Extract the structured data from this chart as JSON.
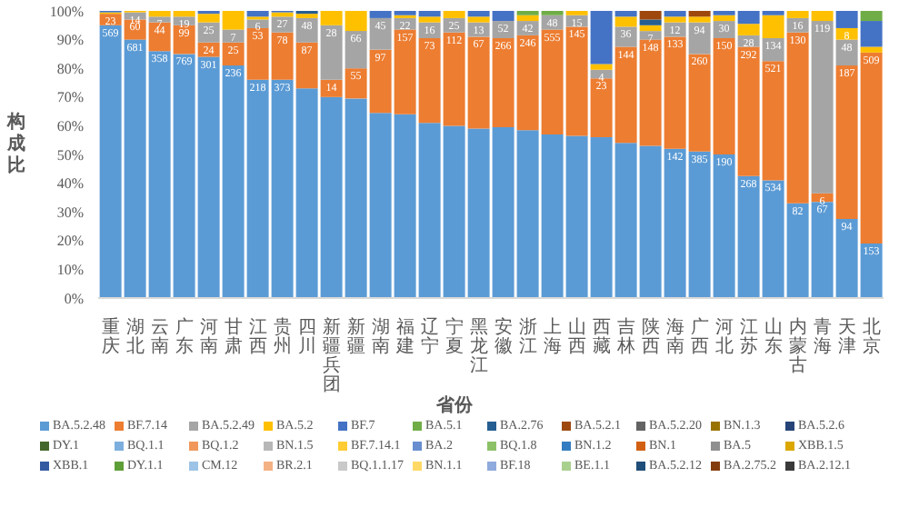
{
  "chart_data": {
    "type": "bar",
    "stacked": true,
    "xlabel": "省份",
    "ylabel": "构成比",
    "legend": "bottom",
    "categories": [
      "重庆",
      "湖北",
      "云南",
      "广东",
      "河南",
      "甘肃",
      "江西",
      "贵州",
      "四川",
      "新疆兵团",
      "新疆",
      "湖南",
      "福建",
      "辽宁",
      "宁夏",
      "黑龙江",
      "安徽",
      "浙江",
      "上海",
      "山西",
      "西藏",
      "吉林",
      "陕西",
      "海南",
      "广西",
      "河北",
      "江苏",
      "山东",
      "内蒙古",
      "青海",
      "天津",
      "北京"
    ],
    "ylim": [
      0,
      100
    ],
    "yticks": [
      {
        "value": 0,
        "label": "0%"
      },
      {
        "value": 10,
        "label": "10%"
      },
      {
        "value": 20,
        "label": "20%"
      },
      {
        "value": 30,
        "label": "30%"
      },
      {
        "value": 40,
        "label": "40%"
      },
      {
        "value": 50,
        "label": "50%"
      },
      {
        "value": 60,
        "label": "60%"
      },
      {
        "value": 70,
        "label": "70%"
      },
      {
        "value": 80,
        "label": "80%"
      },
      {
        "value": 90,
        "label": "90%"
      },
      {
        "value": 100,
        "label": "100%"
      }
    ],
    "series": [
      {
        "name": "BA.5.2.48",
        "color": "#5b9bd5",
        "values": [
          95,
          90,
          86,
          85,
          84,
          81,
          76,
          76,
          73,
          70,
          69.5,
          64.5,
          64,
          61,
          60,
          59,
          59.5,
          58.5,
          57,
          56.5,
          56,
          54,
          53,
          52,
          51,
          50,
          42.5,
          41,
          33,
          33.5,
          27.5,
          19
        ]
      },
      {
        "name": "BF.7.14",
        "color": "#ed7d31",
        "values": [
          4,
          7,
          10,
          10,
          5,
          8,
          18,
          16.5,
          16,
          6,
          10.5,
          22,
          29.5,
          29.5,
          32.5,
          32,
          31,
          33,
          36.5,
          38,
          20.5,
          33.5,
          37,
          39,
          34,
          40.5,
          45,
          41.5,
          59.5,
          3,
          53.5,
          66.5
        ]
      },
      {
        "name": "BA.5.2.49",
        "color": "#a5a5a5",
        "values": [
          null,
          2.5,
          2,
          3,
          7,
          4.5,
          3,
          5.5,
          8.5,
          19,
          13,
          11,
          4,
          5.5,
          5,
          5,
          6,
          5,
          5,
          4,
          3,
          7,
          3,
          5,
          11,
          6,
          4,
          8,
          5,
          60,
          9,
          null
        ]
      },
      {
        "name": "BA.5.2",
        "color": "#ffc000",
        "values": [
          0.5,
          0.5,
          2,
          2,
          3,
          6.5,
          1,
          1.5,
          1.5,
          5,
          7,
          null,
          1,
          2,
          2.5,
          2,
          null,
          2,
          null,
          1.5,
          2,
          3.5,
          2,
          2,
          2,
          2,
          4,
          8,
          2.5,
          3.5,
          4,
          2
        ]
      },
      {
        "name": "BF.7",
        "color": "#4472c4",
        "values": [
          0.5,
          null,
          null,
          null,
          1,
          null,
          2,
          0.5,
          null,
          null,
          null,
          2.5,
          1.5,
          2,
          null,
          2,
          3.5,
          null,
          null,
          null,
          18.5,
          2,
          null,
          2,
          null,
          1.5,
          4.5,
          1.5,
          null,
          null,
          6,
          9
        ]
      },
      {
        "name": "BA.5.1",
        "color": "#70ad47",
        "values": [
          null,
          null,
          null,
          null,
          null,
          null,
          null,
          null,
          null,
          null,
          null,
          null,
          null,
          null,
          null,
          null,
          null,
          1.5,
          1.5,
          null,
          null,
          null,
          null,
          null,
          null,
          null,
          null,
          null,
          null,
          null,
          null,
          3.5
        ]
      },
      {
        "name": "BA.2.76",
        "color": "#255e91",
        "values": [
          null,
          null,
          null,
          null,
          null,
          null,
          null,
          null,
          1,
          null,
          null,
          null,
          null,
          null,
          null,
          null,
          null,
          null,
          null,
          null,
          null,
          null,
          2,
          null,
          null,
          null,
          null,
          null,
          null,
          null,
          null,
          null
        ]
      },
      {
        "name": "BA.5.2.1",
        "color": "#9e480e",
        "values": [
          null,
          null,
          null,
          null,
          null,
          null,
          null,
          null,
          null,
          null,
          null,
          null,
          null,
          null,
          null,
          null,
          null,
          null,
          null,
          null,
          null,
          null,
          3,
          null,
          2,
          null,
          null,
          null,
          null,
          null,
          null,
          null
        ]
      },
      {
        "name": "BA.5.2.20",
        "color": "#636363",
        "values": [
          null,
          null,
          null,
          null,
          null,
          null,
          null,
          null,
          null,
          null,
          null,
          null,
          null,
          null,
          null,
          null,
          null,
          null,
          null,
          null,
          null,
          null,
          null,
          null,
          null,
          null,
          null,
          null,
          null,
          null,
          null,
          null
        ]
      },
      {
        "name": "BN.1.3",
        "color": "#997300",
        "values": [
          null,
          null,
          null,
          null,
          null,
          null,
          null,
          null,
          null,
          null,
          null,
          null,
          null,
          null,
          null,
          null,
          null,
          null,
          null,
          null,
          null,
          null,
          null,
          null,
          null,
          null,
          null,
          null,
          null,
          null,
          null,
          null
        ]
      },
      {
        "name": "BA.5.2.6",
        "color": "#264478",
        "values": [
          null,
          null,
          null,
          null,
          null,
          null,
          null,
          null,
          null,
          null,
          null,
          null,
          null,
          null,
          null,
          null,
          null,
          null,
          null,
          null,
          null,
          null,
          null,
          null,
          null,
          null,
          null,
          null,
          null,
          null,
          null,
          null
        ]
      },
      {
        "name": "DY.1",
        "color": "#43682b",
        "values": [
          null,
          null,
          null,
          null,
          null,
          null,
          null,
          null,
          null,
          null,
          null,
          null,
          null,
          null,
          null,
          null,
          null,
          null,
          null,
          null,
          null,
          null,
          null,
          null,
          null,
          null,
          null,
          null,
          null,
          null,
          null,
          null
        ]
      },
      {
        "name": "BQ.1.1",
        "color": "#7cafdd",
        "values": [
          null,
          null,
          null,
          null,
          null,
          null,
          null,
          null,
          null,
          null,
          null,
          null,
          null,
          null,
          null,
          null,
          null,
          null,
          null,
          null,
          null,
          null,
          null,
          null,
          null,
          null,
          null,
          null,
          null,
          null,
          null,
          null
        ]
      },
      {
        "name": "BQ.1.2",
        "color": "#f1975a",
        "values": [
          null,
          null,
          null,
          null,
          null,
          null,
          null,
          null,
          null,
          null,
          null,
          null,
          null,
          null,
          null,
          null,
          null,
          null,
          null,
          null,
          null,
          null,
          null,
          null,
          null,
          null,
          null,
          null,
          null,
          null,
          null,
          null
        ]
      },
      {
        "name": "BN.1.5",
        "color": "#b7b7b7",
        "values": [
          null,
          null,
          null,
          null,
          null,
          null,
          null,
          null,
          null,
          null,
          null,
          null,
          null,
          null,
          null,
          null,
          null,
          null,
          null,
          null,
          null,
          null,
          null,
          null,
          null,
          null,
          null,
          null,
          null,
          null,
          null,
          null
        ]
      },
      {
        "name": "BF.7.14.1",
        "color": "#ffcd33",
        "values": [
          null,
          null,
          null,
          null,
          null,
          null,
          null,
          null,
          null,
          null,
          null,
          null,
          null,
          null,
          null,
          null,
          null,
          null,
          null,
          null,
          null,
          null,
          null,
          null,
          null,
          null,
          null,
          null,
          null,
          null,
          null,
          null
        ]
      },
      {
        "name": "BA.2",
        "color": "#698ed0",
        "values": [
          null,
          null,
          null,
          null,
          null,
          null,
          null,
          null,
          null,
          null,
          null,
          null,
          null,
          null,
          null,
          null,
          null,
          null,
          null,
          null,
          null,
          null,
          null,
          null,
          null,
          null,
          null,
          null,
          null,
          null,
          null,
          null
        ]
      },
      {
        "name": "BQ.1.8",
        "color": "#8cc168",
        "values": [
          null,
          null,
          null,
          null,
          null,
          null,
          null,
          null,
          null,
          null,
          null,
          null,
          null,
          null,
          null,
          null,
          null,
          null,
          null,
          null,
          null,
          null,
          null,
          null,
          null,
          null,
          null,
          null,
          null,
          null,
          null,
          null
        ]
      },
      {
        "name": "BN.1.2",
        "color": "#327dc2",
        "values": [
          null,
          null,
          null,
          null,
          null,
          null,
          null,
          null,
          null,
          null,
          null,
          null,
          null,
          null,
          null,
          null,
          null,
          null,
          null,
          null,
          null,
          null,
          null,
          null,
          null,
          null,
          null,
          null,
          null,
          null,
          null,
          null
        ]
      },
      {
        "name": "BN.1",
        "color": "#d26012",
        "values": [
          null,
          null,
          null,
          null,
          null,
          null,
          null,
          null,
          null,
          null,
          null,
          null,
          null,
          null,
          null,
          null,
          null,
          null,
          null,
          null,
          null,
          null,
          null,
          null,
          null,
          null,
          null,
          null,
          null,
          null,
          null,
          null
        ]
      },
      {
        "name": "BA.5",
        "color": "#8f8f8f",
        "values": [
          null,
          null,
          null,
          null,
          null,
          null,
          null,
          null,
          null,
          null,
          null,
          null,
          null,
          null,
          null,
          null,
          null,
          null,
          null,
          null,
          null,
          null,
          null,
          null,
          null,
          null,
          null,
          null,
          null,
          null,
          null,
          null
        ]
      },
      {
        "name": "XBB.1.5",
        "color": "#dba700",
        "values": [
          null,
          null,
          null,
          null,
          null,
          null,
          null,
          null,
          null,
          null,
          null,
          null,
          null,
          null,
          null,
          null,
          null,
          null,
          null,
          null,
          null,
          null,
          null,
          null,
          null,
          null,
          null,
          null,
          null,
          null,
          null,
          null
        ]
      },
      {
        "name": "XBB.1",
        "color": "#335aa1",
        "values": [
          null,
          null,
          null,
          null,
          null,
          null,
          null,
          null,
          null,
          null,
          null,
          null,
          null,
          null,
          null,
          null,
          null,
          null,
          null,
          null,
          null,
          null,
          null,
          null,
          null,
          null,
          null,
          null,
          null,
          null,
          null,
          null
        ]
      },
      {
        "name": "DY.1.1",
        "color": "#5e9e37",
        "values": [
          null,
          null,
          null,
          null,
          null,
          null,
          null,
          null,
          null,
          null,
          null,
          null,
          null,
          null,
          null,
          null,
          null,
          null,
          null,
          null,
          null,
          null,
          null,
          null,
          null,
          null,
          null,
          null,
          null,
          null,
          null,
          null
        ]
      },
      {
        "name": "CM.12",
        "color": "#9dc3e6",
        "values": [
          null,
          null,
          null,
          null,
          null,
          null,
          null,
          null,
          null,
          null,
          null,
          null,
          null,
          null,
          null,
          null,
          null,
          null,
          null,
          null,
          null,
          null,
          null,
          null,
          null,
          null,
          null,
          null,
          null,
          null,
          null,
          null
        ]
      },
      {
        "name": "BR.2.1",
        "color": "#f4b183",
        "values": [
          null,
          null,
          null,
          null,
          null,
          null,
          null,
          null,
          null,
          null,
          null,
          null,
          null,
          null,
          null,
          null,
          null,
          null,
          null,
          null,
          null,
          null,
          null,
          null,
          null,
          null,
          null,
          null,
          null,
          null,
          null,
          null
        ]
      },
      {
        "name": "BQ.1.1.17",
        "color": "#c9c9c9",
        "values": [
          null,
          null,
          null,
          null,
          null,
          null,
          null,
          null,
          null,
          null,
          null,
          null,
          null,
          null,
          null,
          null,
          null,
          null,
          null,
          null,
          null,
          null,
          null,
          null,
          null,
          null,
          null,
          null,
          null,
          null,
          null,
          null
        ]
      },
      {
        "name": "BN.1.1",
        "color": "#ffd966",
        "values": [
          null,
          null,
          null,
          null,
          null,
          null,
          null,
          null,
          null,
          null,
          null,
          null,
          null,
          null,
          null,
          null,
          null,
          null,
          null,
          null,
          null,
          null,
          null,
          null,
          null,
          null,
          null,
          null,
          null,
          null,
          null,
          null
        ]
      },
      {
        "name": "BF.18",
        "color": "#8faadc",
        "values": [
          null,
          null,
          null,
          null,
          null,
          null,
          null,
          null,
          null,
          null,
          null,
          null,
          null,
          null,
          null,
          null,
          null,
          null,
          null,
          null,
          null,
          null,
          null,
          null,
          null,
          null,
          null,
          null,
          null,
          null,
          null,
          null
        ]
      },
      {
        "name": "BE.1.1",
        "color": "#a9d18e",
        "values": [
          null,
          null,
          null,
          null,
          null,
          null,
          null,
          null,
          null,
          null,
          null,
          null,
          null,
          null,
          null,
          null,
          null,
          null,
          null,
          null,
          null,
          null,
          null,
          null,
          null,
          null,
          null,
          null,
          null,
          null,
          null,
          null
        ]
      },
      {
        "name": "BA.5.2.12",
        "color": "#1f4e79",
        "values": [
          null,
          null,
          null,
          null,
          null,
          null,
          null,
          null,
          null,
          null,
          null,
          null,
          null,
          null,
          null,
          null,
          null,
          null,
          null,
          null,
          null,
          null,
          null,
          null,
          null,
          null,
          null,
          null,
          null,
          null,
          null,
          null
        ]
      },
      {
        "name": "BA.2.75.2",
        "color": "#843c0c",
        "values": [
          null,
          null,
          null,
          null,
          null,
          null,
          null,
          null,
          null,
          null,
          null,
          null,
          null,
          null,
          null,
          null,
          null,
          null,
          null,
          null,
          null,
          null,
          null,
          null,
          null,
          null,
          null,
          null,
          null,
          null,
          null,
          null
        ]
      },
      {
        "name": "BA.2.12.1",
        "color": "#3a3a3a",
        "values": [
          null,
          null,
          null,
          null,
          null,
          null,
          null,
          null,
          null,
          null,
          null,
          null,
          null,
          null,
          null,
          null,
          null,
          null,
          null,
          null,
          null,
          null,
          null,
          null,
          null,
          null,
          null,
          null,
          null,
          null,
          null,
          null
        ]
      }
    ],
    "annotations": [
      {
        "text": "569",
        "x": "重庆",
        "y": 95
      },
      {
        "text": "681",
        "x": "湖北",
        "y": 90
      },
      {
        "text": "358",
        "x": "云南",
        "y": 86
      },
      {
        "text": "769",
        "x": "广东",
        "y": 85
      },
      {
        "text": "301",
        "x": "河南",
        "y": 84
      },
      {
        "text": "236",
        "x": "甘肃",
        "y": 81
      },
      {
        "text": "218",
        "x": "江西",
        "y": 76
      },
      {
        "text": "373",
        "x": "贵州",
        "y": 76
      },
      {
        "text": "142",
        "x": "海南",
        "y": 52
      },
      {
        "text": "385",
        "x": "广西",
        "y": 51
      },
      {
        "text": "190",
        "x": "河北",
        "y": 50
      },
      {
        "text": "268",
        "x": "江苏",
        "y": 42.5
      },
      {
        "text": "534",
        "x": "山东",
        "y": 41
      },
      {
        "text": "82",
        "x": "内蒙古",
        "y": 33
      },
      {
        "text": "67",
        "x": "青海",
        "y": 33.5
      },
      {
        "text": "94",
        "x": "天津",
        "y": 27.5
      },
      {
        "text": "153",
        "x": "北京",
        "y": 19
      },
      {
        "text": "23",
        "x": "重庆",
        "y": 99
      },
      {
        "text": "60",
        "x": "湖北",
        "y": 97
      },
      {
        "text": "44",
        "x": "云南",
        "y": 96
      },
      {
        "text": "99",
        "x": "广东",
        "y": 95
      },
      {
        "text": "24",
        "x": "河南",
        "y": 89
      },
      {
        "text": "25",
        "x": "甘肃",
        "y": 89
      },
      {
        "text": "53",
        "x": "江西",
        "y": 94
      },
      {
        "text": "78",
        "x": "贵州",
        "y": 92.5
      },
      {
        "text": "87",
        "x": "四川",
        "y": 89
      },
      {
        "text": "14",
        "x": "新疆兵团",
        "y": 76
      },
      {
        "text": "55",
        "x": "新疆",
        "y": 80
      },
      {
        "text": "97",
        "x": "湖南",
        "y": 86.5
      },
      {
        "text": "157",
        "x": "福建",
        "y": 93.5
      },
      {
        "text": "73",
        "x": "辽宁",
        "y": 90.5
      },
      {
        "text": "112",
        "x": "宁夏",
        "y": 92.5
      },
      {
        "text": "67",
        "x": "黑龙江",
        "y": 91
      },
      {
        "text": "266",
        "x": "安徽",
        "y": 90.5
      },
      {
        "text": "246",
        "x": "浙江",
        "y": 91.5
      },
      {
        "text": "555",
        "x": "上海",
        "y": 93.5
      },
      {
        "text": "145",
        "x": "山西",
        "y": 94.5
      },
      {
        "text": "23",
        "x": "西藏",
        "y": 76.5
      },
      {
        "text": "144",
        "x": "吉林",
        "y": 87.5
      },
      {
        "text": "148",
        "x": "陕西",
        "y": 90
      },
      {
        "text": "133",
        "x": "海南",
        "y": 91
      },
      {
        "text": "260",
        "x": "广西",
        "y": 85
      },
      {
        "text": "150",
        "x": "河北",
        "y": 90.5
      },
      {
        "text": "292",
        "x": "江苏",
        "y": 87.5
      },
      {
        "text": "521",
        "x": "山东",
        "y": 82.5
      },
      {
        "text": "130",
        "x": "内蒙古",
        "y": 92.5
      },
      {
        "text": "6",
        "x": "青海",
        "y": 36.5
      },
      {
        "text": "187",
        "x": "天津",
        "y": 81
      },
      {
        "text": "509",
        "x": "北京",
        "y": 85.5
      },
      {
        "text": "14",
        "x": "湖北",
        "y": 99.5
      },
      {
        "text": "7",
        "x": "云南",
        "y": 98
      },
      {
        "text": "19",
        "x": "广东",
        "y": 98
      },
      {
        "text": "25",
        "x": "河南",
        "y": 96
      },
      {
        "text": "7",
        "x": "甘肃",
        "y": 93.5
      },
      {
        "text": "6",
        "x": "江西",
        "y": 97
      },
      {
        "text": "27",
        "x": "贵州",
        "y": 98
      },
      {
        "text": "48",
        "x": "四川",
        "y": 97.5
      },
      {
        "text": "28",
        "x": "新疆兵团",
        "y": 95
      },
      {
        "text": "66",
        "x": "新疆",
        "y": 93
      },
      {
        "text": "45",
        "x": "湖南",
        "y": 97.5
      },
      {
        "text": "22",
        "x": "福建",
        "y": 97.5
      },
      {
        "text": "16",
        "x": "辽宁",
        "y": 96
      },
      {
        "text": "25",
        "x": "宁夏",
        "y": 97.5
      },
      {
        "text": "13",
        "x": "黑龙江",
        "y": 96
      },
      {
        "text": "52",
        "x": "安徽",
        "y": 96.5
      },
      {
        "text": "42",
        "x": "浙江",
        "y": 96.5
      },
      {
        "text": "48",
        "x": "上海",
        "y": 98.5
      },
      {
        "text": "15",
        "x": "山西",
        "y": 98.5
      },
      {
        "text": "4",
        "x": "西藏",
        "y": 79.5
      },
      {
        "text": "36",
        "x": "吉林",
        "y": 94.5
      },
      {
        "text": "7",
        "x": "陕西",
        "y": 93
      },
      {
        "text": "12",
        "x": "海南",
        "y": 96
      },
      {
        "text": "94",
        "x": "广西",
        "y": 96
      },
      {
        "text": "30",
        "x": "河北",
        "y": 96.5
      },
      {
        "text": "28",
        "x": "江苏",
        "y": 91.5
      },
      {
        "text": "134",
        "x": "山东",
        "y": 90.5
      },
      {
        "text": "16",
        "x": "内蒙古",
        "y": 97.5
      },
      {
        "text": "119",
        "x": "青海",
        "y": 96.5
      },
      {
        "text": "48",
        "x": "天津",
        "y": 90
      },
      {
        "text": "8",
        "x": "天津",
        "y": 94
      }
    ]
  }
}
